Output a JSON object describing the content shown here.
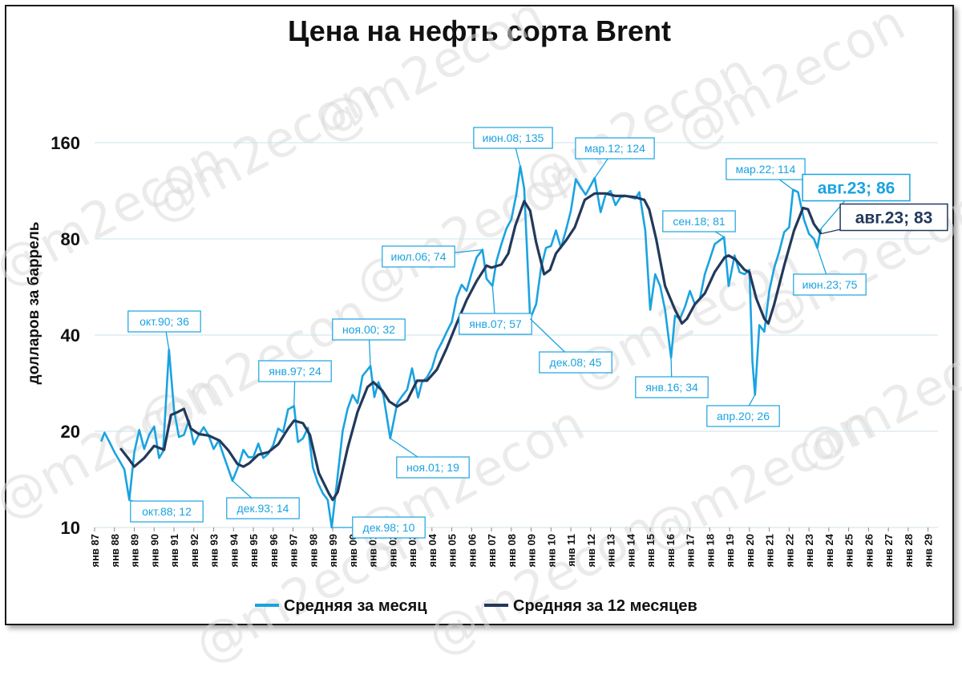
{
  "chart_data": {
    "type": "line",
    "title": "Цена на нефть сорта Brent",
    "ylabel": "долларов за баррель",
    "yscale": "log",
    "ylim": [
      10,
      160
    ],
    "yticks": [
      "160",
      "80",
      "40",
      "20",
      "10"
    ],
    "ytick_values": [
      160,
      80,
      40,
      20,
      10
    ],
    "xlim": [
      1987,
      2029.5
    ],
    "xticks": [
      "янв 87",
      "янв 88",
      "янв 89",
      "янв 90",
      "янв 91",
      "янв 92",
      "янв 93",
      "янв 94",
      "янв 95",
      "янв 96",
      "янв 97",
      "янв 98",
      "янв 99",
      "янв 00",
      "янв 01",
      "янв 02",
      "янв 03",
      "янв 04",
      "янв 05",
      "янв 06",
      "янв 07",
      "янв 08",
      "янв 09",
      "янв 10",
      "янв 11",
      "янв 12",
      "янв 13",
      "янв 14",
      "янв 15",
      "янв 16",
      "янв 17",
      "янв 18",
      "янв 19",
      "янв 20",
      "янв 21",
      "янв 22",
      "янв 23",
      "янв 24",
      "янв 25",
      "янв 26",
      "янв 27",
      "янв 28",
      "янв 29"
    ],
    "grid": "horizontal",
    "legend_position": "bottom",
    "series": [
      {
        "name": "Средняя за месяц",
        "color": "#1aa3e0",
        "points": [
          [
            1987.33,
            18.6
          ],
          [
            1987.5,
            19.8
          ],
          [
            1987.75,
            18.5
          ],
          [
            1988.0,
            17.2
          ],
          [
            1988.25,
            16.2
          ],
          [
            1988.5,
            15.2
          ],
          [
            1988.75,
            12.2
          ],
          [
            1989.0,
            17.2
          ],
          [
            1989.25,
            20.2
          ],
          [
            1989.5,
            17.6
          ],
          [
            1989.75,
            19.5
          ],
          [
            1990.0,
            20.7
          ],
          [
            1990.25,
            16.5
          ],
          [
            1990.45,
            17.3
          ],
          [
            1990.75,
            36.0
          ],
          [
            1991.0,
            23.4
          ],
          [
            1991.25,
            19.2
          ],
          [
            1991.5,
            19.5
          ],
          [
            1991.75,
            21.6
          ],
          [
            1992.0,
            18.2
          ],
          [
            1992.25,
            19.5
          ],
          [
            1992.5,
            20.6
          ],
          [
            1992.75,
            19.4
          ],
          [
            1993.0,
            17.6
          ],
          [
            1993.25,
            18.7
          ],
          [
            1993.5,
            16.8
          ],
          [
            1993.95,
            14.0
          ],
          [
            1994.25,
            15.6
          ],
          [
            1994.5,
            17.5
          ],
          [
            1994.75,
            16.6
          ],
          [
            1995.0,
            16.6
          ],
          [
            1995.25,
            18.3
          ],
          [
            1995.5,
            16.5
          ],
          [
            1995.75,
            17.0
          ],
          [
            1996.0,
            18.1
          ],
          [
            1996.25,
            20.4
          ],
          [
            1996.5,
            19.9
          ],
          [
            1996.75,
            23.4
          ],
          [
            1997.05,
            24.0
          ],
          [
            1997.25,
            18.5
          ],
          [
            1997.5,
            19.0
          ],
          [
            1997.75,
            20.5
          ],
          [
            1998.0,
            15.4
          ],
          [
            1998.25,
            13.8
          ],
          [
            1998.5,
            12.8
          ],
          [
            1998.75,
            12.2
          ],
          [
            1998.95,
            10.0
          ],
          [
            1999.25,
            14.5
          ],
          [
            1999.5,
            20.0
          ],
          [
            1999.75,
            23.5
          ],
          [
            2000.0,
            26.0
          ],
          [
            2000.25,
            24.5
          ],
          [
            2000.5,
            29.8
          ],
          [
            2000.9,
            32.0
          ],
          [
            2001.1,
            25.6
          ],
          [
            2001.3,
            28.5
          ],
          [
            2001.55,
            26.0
          ],
          [
            2001.9,
            19.0
          ],
          [
            2002.25,
            24.5
          ],
          [
            2002.5,
            25.8
          ],
          [
            2002.75,
            27.0
          ],
          [
            2003.0,
            31.5
          ],
          [
            2003.3,
            25.5
          ],
          [
            2003.5,
            28.5
          ],
          [
            2003.75,
            29.5
          ],
          [
            2004.0,
            31.5
          ],
          [
            2004.25,
            35.5
          ],
          [
            2004.5,
            38.0
          ],
          [
            2004.75,
            41.0
          ],
          [
            2005.0,
            44.0
          ],
          [
            2005.25,
            52.5
          ],
          [
            2005.5,
            57.5
          ],
          [
            2005.75,
            55.0
          ],
          [
            2006.0,
            62.5
          ],
          [
            2006.25,
            70.0
          ],
          [
            2006.55,
            74.0
          ],
          [
            2006.75,
            60.0
          ],
          [
            2007.05,
            57.0
          ],
          [
            2007.25,
            68.0
          ],
          [
            2007.5,
            77.0
          ],
          [
            2007.75,
            86.0
          ],
          [
            2008.0,
            92.0
          ],
          [
            2008.25,
            110.0
          ],
          [
            2008.45,
            135.0
          ],
          [
            2008.65,
            115.0
          ],
          [
            2008.95,
            45.0
          ],
          [
            2009.25,
            50.0
          ],
          [
            2009.5,
            65.0
          ],
          [
            2009.75,
            75.0
          ],
          [
            2010.0,
            76.0
          ],
          [
            2010.25,
            85.0
          ],
          [
            2010.5,
            75.0
          ],
          [
            2010.75,
            85.0
          ],
          [
            2011.0,
            98.0
          ],
          [
            2011.25,
            123.0
          ],
          [
            2011.5,
            116.0
          ],
          [
            2011.75,
            110.0
          ],
          [
            2012.2,
            124.0
          ],
          [
            2012.5,
            97.0
          ],
          [
            2012.75,
            110.0
          ],
          [
            2013.0,
            113.0
          ],
          [
            2013.25,
            102.0
          ],
          [
            2013.5,
            108.0
          ],
          [
            2013.75,
            109.0
          ],
          [
            2014.0,
            108.0
          ],
          [
            2014.25,
            107.0
          ],
          [
            2014.45,
            112.0
          ],
          [
            2014.75,
            85.0
          ],
          [
            2015.0,
            48.0
          ],
          [
            2015.25,
            62.0
          ],
          [
            2015.5,
            57.0
          ],
          [
            2015.75,
            48.0
          ],
          [
            2016.05,
            34.0
          ],
          [
            2016.25,
            46.0
          ],
          [
            2016.5,
            45.0
          ],
          [
            2016.75,
            49.0
          ],
          [
            2017.0,
            55.0
          ],
          [
            2017.25,
            50.0
          ],
          [
            2017.5,
            52.0
          ],
          [
            2017.75,
            62.0
          ],
          [
            2018.0,
            69.0
          ],
          [
            2018.25,
            77.0
          ],
          [
            2018.72,
            81.0
          ],
          [
            2018.95,
            57.0
          ],
          [
            2019.25,
            71.0
          ],
          [
            2019.5,
            63.0
          ],
          [
            2019.75,
            62.0
          ],
          [
            2020.0,
            64.0
          ],
          [
            2020.15,
            33.0
          ],
          [
            2020.28,
            26.0
          ],
          [
            2020.5,
            43.0
          ],
          [
            2020.75,
            41.0
          ],
          [
            2021.0,
            55.0
          ],
          [
            2021.25,
            65.0
          ],
          [
            2021.5,
            73.0
          ],
          [
            2021.75,
            84.0
          ],
          [
            2022.0,
            87.0
          ],
          [
            2022.2,
            114.0
          ],
          [
            2022.45,
            112.0
          ],
          [
            2022.75,
            92.0
          ],
          [
            2023.0,
            83.0
          ],
          [
            2023.25,
            80.0
          ],
          [
            2023.42,
            75.0
          ],
          [
            2023.6,
            86.0
          ]
        ]
      },
      {
        "name": "Средняя за 12 месяцев",
        "color": "#23395b",
        "points": [
          [
            1988.3,
            17.7
          ],
          [
            1988.75,
            16.3
          ],
          [
            1989.0,
            15.5
          ],
          [
            1989.5,
            16.5
          ],
          [
            1990.0,
            18.0
          ],
          [
            1990.5,
            17.5
          ],
          [
            1990.85,
            22.5
          ],
          [
            1991.2,
            23.0
          ],
          [
            1991.5,
            23.5
          ],
          [
            1991.85,
            20.4
          ],
          [
            1992.25,
            19.6
          ],
          [
            1992.75,
            19.4
          ],
          [
            1993.3,
            18.7
          ],
          [
            1993.75,
            17.4
          ],
          [
            1994.2,
            15.8
          ],
          [
            1994.5,
            15.5
          ],
          [
            1994.8,
            15.9
          ],
          [
            1995.25,
            16.9
          ],
          [
            1995.75,
            17.2
          ],
          [
            1996.25,
            18.2
          ],
          [
            1996.75,
            20.4
          ],
          [
            1997.05,
            21.6
          ],
          [
            1997.5,
            21.2
          ],
          [
            1997.85,
            19.5
          ],
          [
            1998.3,
            14.8
          ],
          [
            1998.8,
            12.8
          ],
          [
            1999.0,
            12.2
          ],
          [
            1999.25,
            12.9
          ],
          [
            1999.75,
            17.7
          ],
          [
            2000.25,
            23.0
          ],
          [
            2000.75,
            27.5
          ],
          [
            2001.05,
            28.5
          ],
          [
            2001.5,
            26.8
          ],
          [
            2001.85,
            24.8
          ],
          [
            2002.25,
            23.9
          ],
          [
            2002.75,
            25.0
          ],
          [
            2003.25,
            28.8
          ],
          [
            2003.75,
            28.8
          ],
          [
            2004.25,
            31.2
          ],
          [
            2004.75,
            36.5
          ],
          [
            2005.25,
            43.5
          ],
          [
            2005.75,
            51.5
          ],
          [
            2006.25,
            59.0
          ],
          [
            2006.75,
            66.0
          ],
          [
            2007.0,
            65.0
          ],
          [
            2007.5,
            66.5
          ],
          [
            2007.85,
            72.0
          ],
          [
            2008.2,
            88.0
          ],
          [
            2008.65,
            105.0
          ],
          [
            2008.95,
            98.0
          ],
          [
            2009.25,
            78.0
          ],
          [
            2009.65,
            62.0
          ],
          [
            2009.95,
            64.0
          ],
          [
            2010.25,
            72.0
          ],
          [
            2010.75,
            79.0
          ],
          [
            2011.2,
            87.0
          ],
          [
            2011.7,
            106.0
          ],
          [
            2012.2,
            111.0
          ],
          [
            2012.75,
            111.0
          ],
          [
            2013.25,
            109.0
          ],
          [
            2013.75,
            109.0
          ],
          [
            2014.25,
            108.0
          ],
          [
            2014.7,
            106.0
          ],
          [
            2014.95,
            99.0
          ],
          [
            2015.3,
            80.0
          ],
          [
            2015.75,
            57.0
          ],
          [
            2016.25,
            48.0
          ],
          [
            2016.6,
            43.5
          ],
          [
            2016.85,
            45.0
          ],
          [
            2017.25,
            50.0
          ],
          [
            2017.75,
            54.0
          ],
          [
            2018.25,
            63.0
          ],
          [
            2018.75,
            70.0
          ],
          [
            2018.95,
            71.0
          ],
          [
            2019.3,
            69.0
          ],
          [
            2019.75,
            64.0
          ],
          [
            2020.0,
            63.0
          ],
          [
            2020.35,
            52.0
          ],
          [
            2020.75,
            45.0
          ],
          [
            2020.95,
            43.5
          ],
          [
            2021.25,
            50.0
          ],
          [
            2021.75,
            66.0
          ],
          [
            2022.25,
            85.0
          ],
          [
            2022.7,
            100.0
          ],
          [
            2022.95,
            99.0
          ],
          [
            2023.25,
            89.0
          ],
          [
            2023.6,
            83.0
          ]
        ]
      }
    ],
    "annotations": [
      {
        "text": "окт.88; 12",
        "x": 1988.75,
        "y": 12.2,
        "series": 0
      },
      {
        "text": "окт.90; 36",
        "x": 1990.75,
        "y": 36.0,
        "series": 0
      },
      {
        "text": "дек.93; 14",
        "x": 1993.95,
        "y": 14.0,
        "series": 0
      },
      {
        "text": "янв.97; 24",
        "x": 1997.05,
        "y": 24.0,
        "series": 0
      },
      {
        "text": "дек.98; 10",
        "x": 1998.95,
        "y": 10.0,
        "series": 0
      },
      {
        "text": "ноя.00; 32",
        "x": 2000.9,
        "y": 32.0,
        "series": 0
      },
      {
        "text": "ноя.01; 19",
        "x": 2001.9,
        "y": 19.0,
        "series": 0
      },
      {
        "text": "июл.06; 74",
        "x": 2006.55,
        "y": 74.0,
        "series": 0
      },
      {
        "text": "янв.07; 57",
        "x": 2007.05,
        "y": 57.0,
        "series": 0
      },
      {
        "text": "июн.08; 135",
        "x": 2008.45,
        "y": 135.0,
        "series": 0
      },
      {
        "text": "дек.08; 45",
        "x": 2008.95,
        "y": 45.0,
        "series": 0
      },
      {
        "text": "мар.12; 124",
        "x": 2012.2,
        "y": 124.0,
        "series": 0
      },
      {
        "text": "янв.16; 34",
        "x": 2016.05,
        "y": 34.0,
        "series": 0
      },
      {
        "text": "сен.18; 81",
        "x": 2018.72,
        "y": 81.0,
        "series": 0
      },
      {
        "text": "апр.20; 26",
        "x": 2020.28,
        "y": 26.0,
        "series": 0
      },
      {
        "text": "мар.22; 114",
        "x": 2022.2,
        "y": 114.0,
        "series": 0
      },
      {
        "text": "июн.23; 75",
        "x": 2023.42,
        "y": 75.0,
        "series": 0
      },
      {
        "text": "авг.23; 86",
        "x": 2023.6,
        "y": 86.0,
        "series": 0,
        "emphasis": true
      },
      {
        "text": "авг.23; 83",
        "x": 2023.6,
        "y": 83.0,
        "series": 1,
        "emphasis": true
      }
    ]
  },
  "watermark": "@m2econ",
  "legend": [
    "Средняя за месяц",
    "Средняя за 12 месяцев"
  ]
}
